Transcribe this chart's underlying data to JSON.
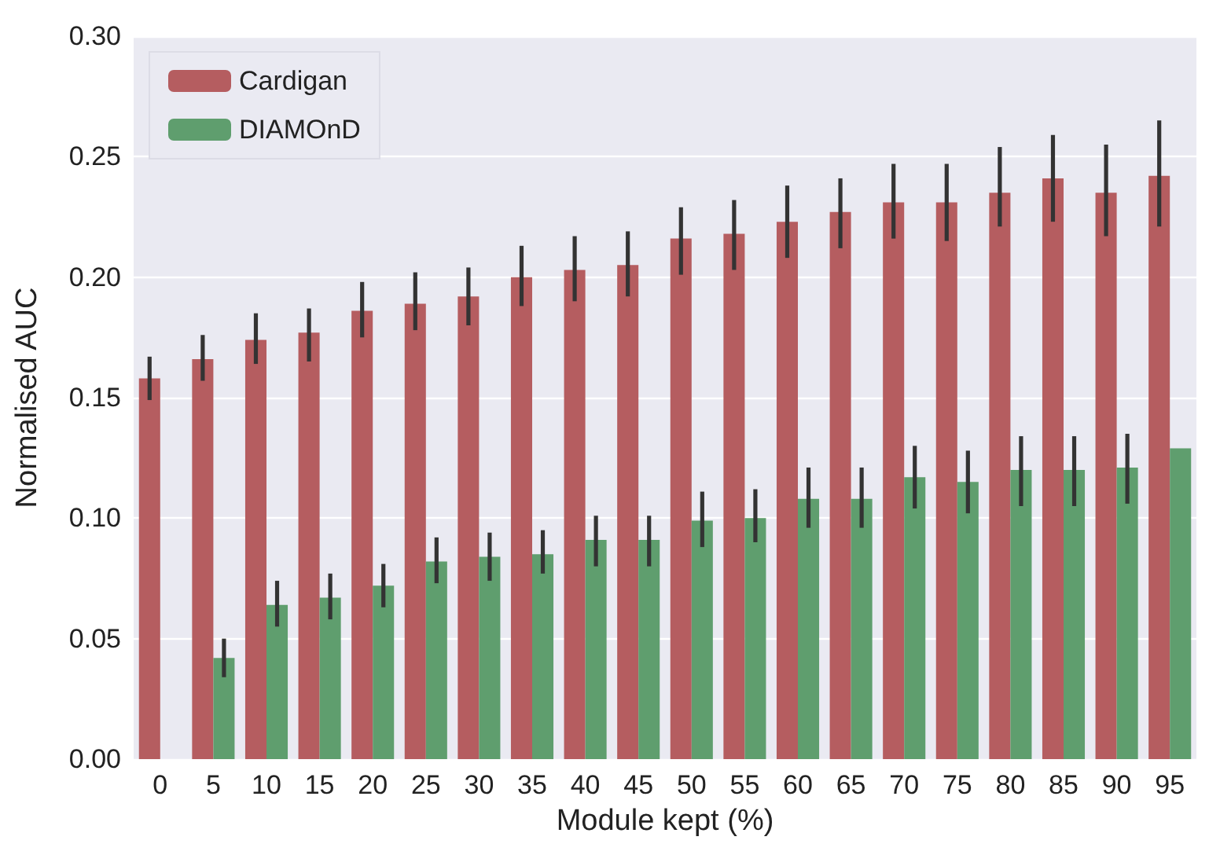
{
  "chart_data": {
    "type": "bar",
    "xlabel": "Module kept (%)",
    "ylabel": "Normalised AUC",
    "categories": [
      "0",
      "5",
      "10",
      "15",
      "20",
      "25",
      "30",
      "35",
      "40",
      "45",
      "50",
      "55",
      "60",
      "65",
      "70",
      "75",
      "80",
      "85",
      "90",
      "95"
    ],
    "series": [
      {
        "name": "Cardigan",
        "color": "#b55d60",
        "values": [
          0.158,
          0.166,
          0.174,
          0.177,
          0.186,
          0.189,
          0.192,
          0.2,
          0.203,
          0.205,
          0.216,
          0.218,
          0.223,
          0.227,
          0.231,
          0.231,
          0.235,
          0.241,
          0.235,
          0.242
        ],
        "errors": [
          [
            0.149,
            0.167
          ],
          [
            0.157,
            0.176
          ],
          [
            0.164,
            0.185
          ],
          [
            0.165,
            0.187
          ],
          [
            0.175,
            0.198
          ],
          [
            0.178,
            0.202
          ],
          [
            0.18,
            0.204
          ],
          [
            0.188,
            0.213
          ],
          [
            0.19,
            0.217
          ],
          [
            0.192,
            0.219
          ],
          [
            0.201,
            0.229
          ],
          [
            0.203,
            0.232
          ],
          [
            0.208,
            0.238
          ],
          [
            0.212,
            0.241
          ],
          [
            0.216,
            0.247
          ],
          [
            0.215,
            0.247
          ],
          [
            0.221,
            0.254
          ],
          [
            0.223,
            0.259
          ],
          [
            0.217,
            0.255
          ],
          [
            0.221,
            0.265
          ]
        ]
      },
      {
        "name": "DIAMOnD",
        "color": "#5f9e6e",
        "values": [
          0,
          0.042,
          0.064,
          0.067,
          0.072,
          0.082,
          0.084,
          0.085,
          0.091,
          0.091,
          0.099,
          0.1,
          0.108,
          0.108,
          0.117,
          0.115,
          0.12,
          0.12,
          0.121,
          0.129
        ],
        "errors": [
          null,
          [
            0.034,
            0.05
          ],
          [
            0.055,
            0.074
          ],
          [
            0.058,
            0.077
          ],
          [
            0.063,
            0.081
          ],
          [
            0.073,
            0.092
          ],
          [
            0.074,
            0.094
          ],
          [
            0.077,
            0.095
          ],
          [
            0.08,
            0.101
          ],
          [
            0.08,
            0.101
          ],
          [
            0.088,
            0.111
          ],
          [
            0.09,
            0.112
          ],
          [
            0.096,
            0.121
          ],
          [
            0.096,
            0.121
          ],
          [
            0.104,
            0.13
          ],
          [
            0.102,
            0.128
          ],
          [
            0.105,
            0.134
          ],
          [
            0.105,
            0.134
          ],
          [
            0.106,
            0.135
          ],
          null
        ]
      }
    ],
    "ylim": [
      0,
      0.3
    ],
    "yticks": [
      {
        "value": 0,
        "label": "0.00"
      },
      {
        "value": 0.05,
        "label": "0.05"
      },
      {
        "value": 0.1,
        "label": "0.10"
      },
      {
        "value": 0.15,
        "label": "0.15"
      },
      {
        "value": 0.2,
        "label": "0.20"
      },
      {
        "value": 0.25,
        "label": "0.25"
      },
      {
        "value": 0.3,
        "label": "0.30"
      }
    ],
    "grid": "y",
    "legend": "top left"
  }
}
